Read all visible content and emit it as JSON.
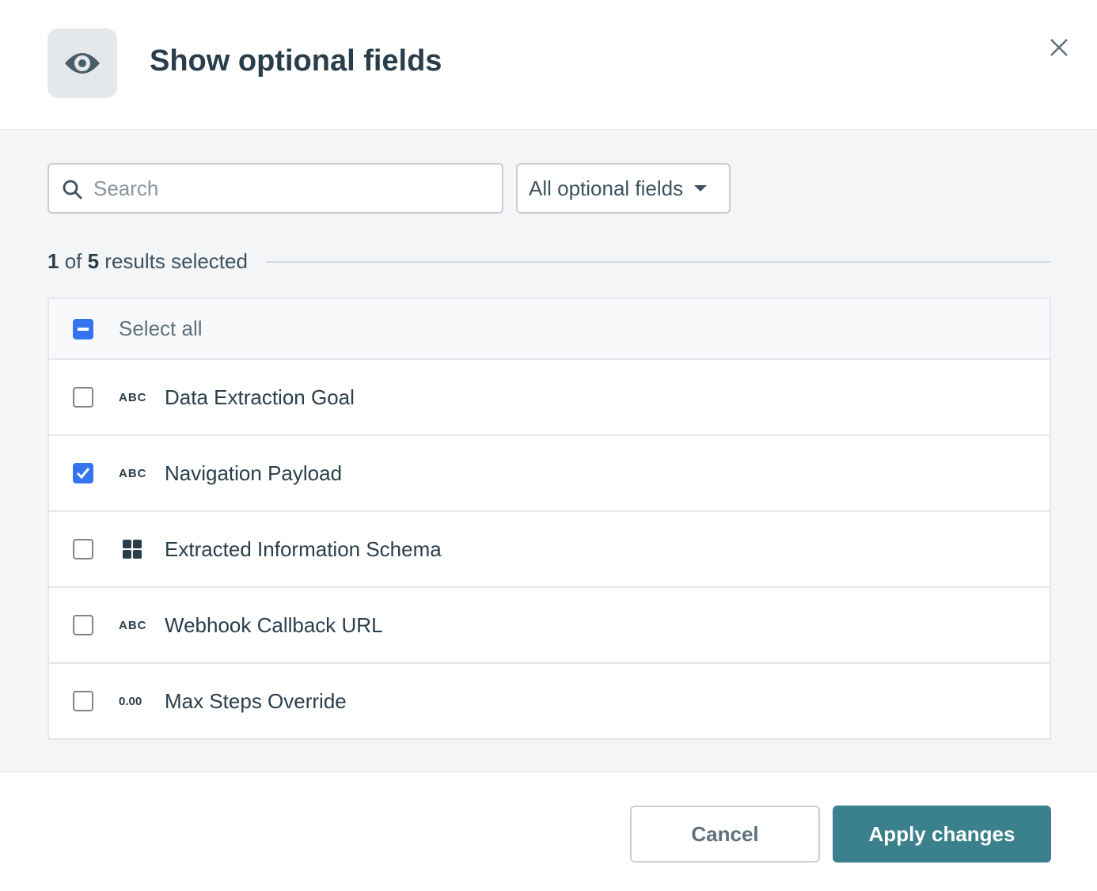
{
  "header": {
    "title": "Show optional fields",
    "icon": "eye-icon",
    "close_icon": "close-icon"
  },
  "search": {
    "placeholder": "Search",
    "value": ""
  },
  "filter": {
    "selected": "All optional fields"
  },
  "summary": {
    "selected": "1",
    "of": " of ",
    "total": "5",
    "suffix": " results selected"
  },
  "select_all": {
    "label": "Select all",
    "state": "indeterminate"
  },
  "fields": [
    {
      "type": "ABC",
      "label": "Data Extraction Goal",
      "checked": false
    },
    {
      "type": "ABC",
      "label": "Navigation Payload",
      "checked": true
    },
    {
      "type": "grid-icon",
      "label": "Extracted Information Schema",
      "checked": false
    },
    {
      "type": "ABC",
      "label": "Webhook Callback URL",
      "checked": false
    },
    {
      "type": "0.00",
      "label": "Max Steps Override",
      "checked": false
    }
  ],
  "footer": {
    "cancel": "Cancel",
    "apply": "Apply changes"
  },
  "colors": {
    "accent": "#3574f0",
    "primary_button": "#3b808d",
    "title": "#2a3d4b"
  }
}
